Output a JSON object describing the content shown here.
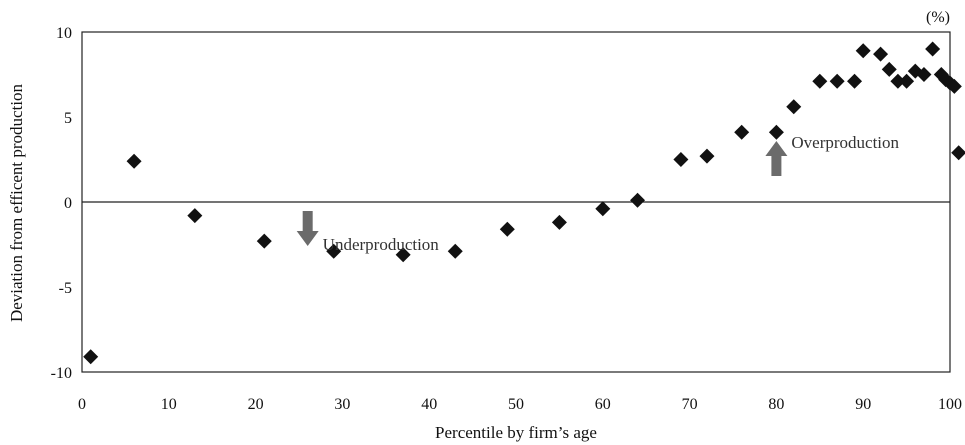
{
  "chart_data": {
    "type": "scatter",
    "title": "",
    "xlabel": "Percentile by firm’s age",
    "ylabel": "Deviation from efficent production",
    "unit_label": "(%)",
    "xlim": [
      0,
      100
    ],
    "ylim": [
      -10,
      10
    ],
    "x_ticks": [
      0,
      10,
      20,
      30,
      40,
      50,
      60,
      70,
      80,
      90,
      100
    ],
    "y_ticks": [
      -10,
      -5,
      0,
      5,
      10
    ],
    "grid": false,
    "marker": "diamond",
    "marker_color": "#111111",
    "arrow_color": "#6b6b6b",
    "series": [
      {
        "points": [
          [
            1,
            -9.1
          ],
          [
            6,
            2.4
          ],
          [
            13,
            -0.8
          ],
          [
            21,
            -2.3
          ],
          [
            29,
            -2.9
          ],
          [
            37,
            -3.1
          ],
          [
            43,
            -2.9
          ],
          [
            49,
            -1.6
          ],
          [
            55,
            -1.2
          ],
          [
            60,
            -0.4
          ],
          [
            64,
            0.1
          ],
          [
            69,
            2.5
          ],
          [
            72,
            2.7
          ],
          [
            76,
            4.1
          ],
          [
            80,
            4.1
          ],
          [
            82,
            5.6
          ],
          [
            85,
            7.1
          ],
          [
            87,
            7.1
          ],
          [
            89,
            7.1
          ],
          [
            90,
            8.9
          ],
          [
            92,
            8.7
          ],
          [
            93,
            7.8
          ],
          [
            94,
            7.1
          ],
          [
            95,
            7.1
          ],
          [
            96,
            7.7
          ],
          [
            97,
            7.5
          ],
          [
            98,
            9.0
          ],
          [
            99,
            7.5
          ],
          [
            99.5,
            7.2
          ],
          [
            100,
            7.0
          ],
          [
            100.5,
            6.8
          ],
          [
            101,
            2.9
          ]
        ]
      }
    ],
    "annotations": [
      {
        "text": "Underproduction",
        "x": 26,
        "y": -1,
        "arrow": "down"
      },
      {
        "text": "Overproduction",
        "x": 80,
        "y": 2,
        "arrow": "up"
      }
    ]
  }
}
